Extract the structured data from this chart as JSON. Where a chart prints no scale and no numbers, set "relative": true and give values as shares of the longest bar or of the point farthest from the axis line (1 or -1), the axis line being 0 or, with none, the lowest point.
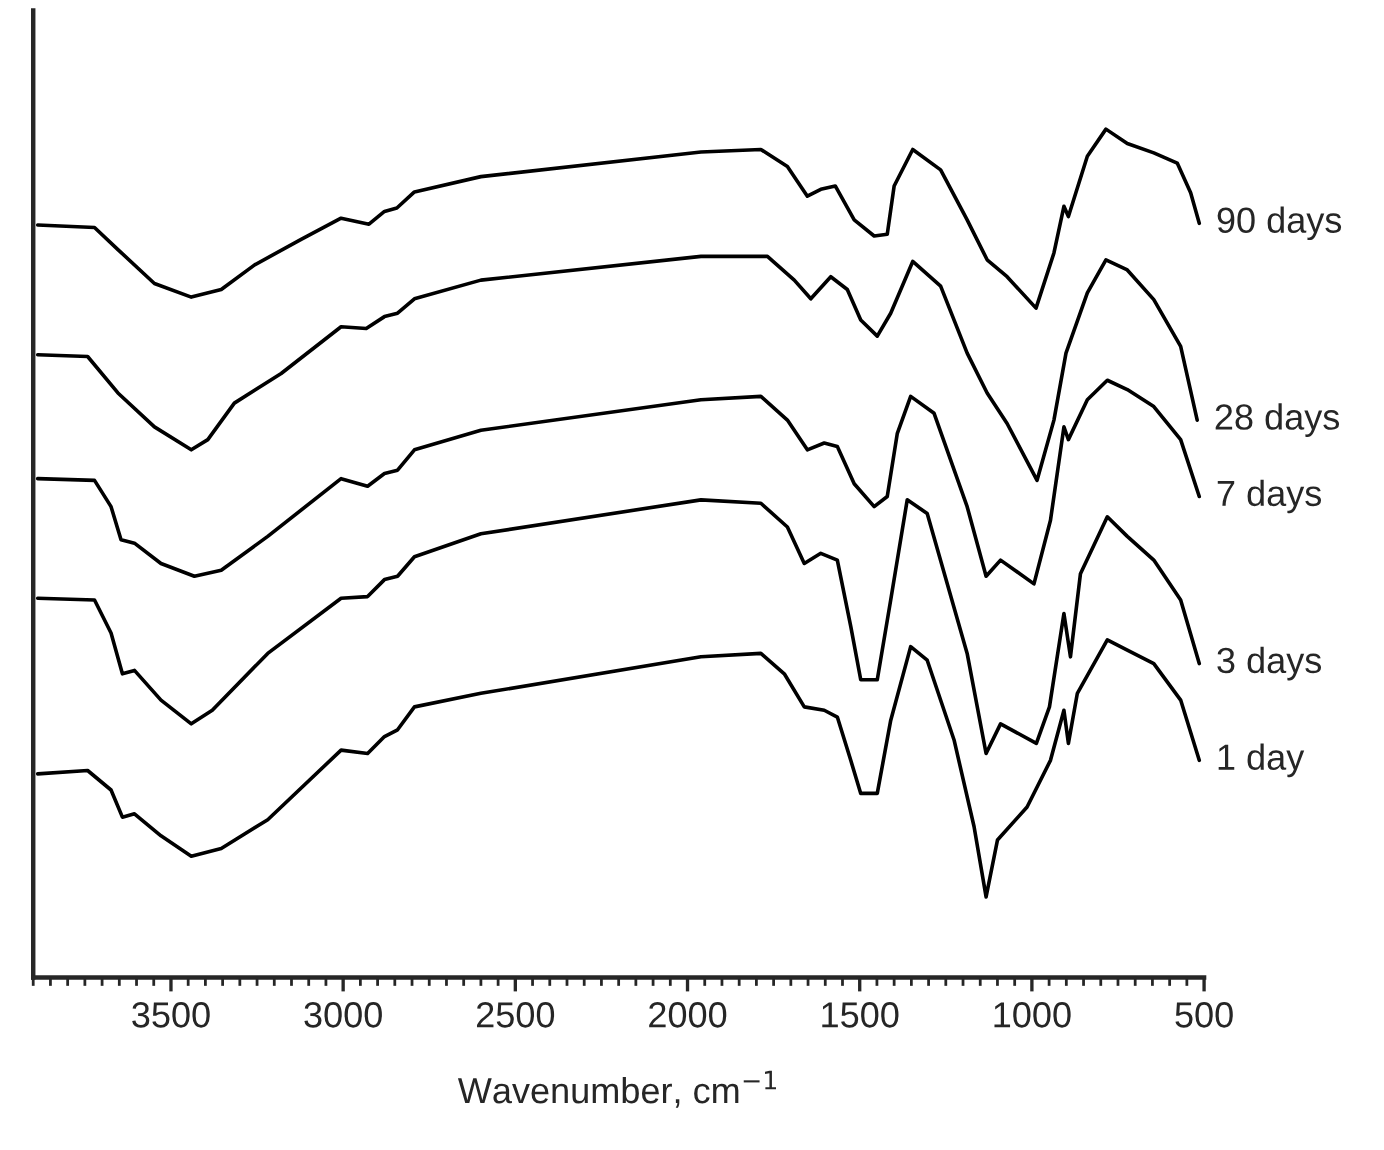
{
  "chart_data": {
    "type": "line",
    "relative": true,
    "xlabel": "Wavenumber, cm$^{−1}$",
    "xlim": [
      3900,
      500
    ],
    "xticks": [
      3500,
      3000,
      2500,
      2000,
      1500,
      1000,
      500
    ],
    "grid": false,
    "legend": false,
    "marker": "none",
    "line_style": "solid",
    "series": [
      {
        "name": "90 days",
        "color": "#000000",
        "x": [
          3887,
          3722,
          3654,
          3548,
          3441,
          3354,
          3257,
          3122,
          3006,
          2925,
          2880,
          2844,
          2793,
          2600,
          1961,
          1787,
          1710,
          1652,
          1613,
          1571,
          1516,
          1458,
          1420,
          1400,
          1346,
          1265,
          1188,
          1130,
          1072,
          988,
          936,
          907,
          894,
          839,
          785,
          723,
          646,
          578,
          539,
          514
        ],
        "values": [
          0.887,
          0.884,
          0.858,
          0.818,
          0.802,
          0.811,
          0.84,
          0.87,
          0.895,
          0.888,
          0.903,
          0.907,
          0.926,
          0.944,
          0.973,
          0.976,
          0.956,
          0.921,
          0.929,
          0.933,
          0.893,
          0.874,
          0.876,
          0.933,
          0.976,
          0.952,
          0.893,
          0.846,
          0.826,
          0.789,
          0.854,
          0.909,
          0.897,
          0.968,
          1.0,
          0.983,
          0.972,
          0.96,
          0.925,
          0.889
        ]
      },
      {
        "name": "28 days",
        "color": "#000000",
        "x": [
          3887,
          3742,
          3654,
          3548,
          3441,
          3393,
          3316,
          3180,
          3006,
          2933,
          2880,
          2842,
          2793,
          2600,
          1961,
          1768,
          1690,
          1642,
          1584,
          1536,
          1497,
          1449,
          1410,
          1346,
          1265,
          1188,
          1130,
          1072,
          985,
          936,
          901,
          839,
          785,
          723,
          646,
          568,
          520
        ],
        "values": [
          0.734,
          0.732,
          0.689,
          0.649,
          0.622,
          0.634,
          0.677,
          0.712,
          0.767,
          0.765,
          0.779,
          0.783,
          0.8,
          0.822,
          0.85,
          0.85,
          0.822,
          0.8,
          0.826,
          0.811,
          0.775,
          0.756,
          0.783,
          0.844,
          0.815,
          0.736,
          0.689,
          0.653,
          0.586,
          0.657,
          0.736,
          0.807,
          0.846,
          0.834,
          0.799,
          0.744,
          0.657
        ]
      },
      {
        "name": "7 days",
        "color": "#000000",
        "x": [
          3887,
          3722,
          3674,
          3645,
          3606,
          3529,
          3432,
          3354,
          3219,
          3006,
          2929,
          2880,
          2842,
          2793,
          2600,
          1961,
          1787,
          1710,
          1652,
          1603,
          1565,
          1516,
          1458,
          1420,
          1391,
          1352,
          1284,
          1188,
          1133,
          1091,
          994,
          946,
          907,
          894,
          839,
          781,
          723,
          646,
          568,
          514
        ],
        "values": [
          0.588,
          0.586,
          0.555,
          0.516,
          0.512,
          0.488,
          0.473,
          0.48,
          0.52,
          0.588,
          0.579,
          0.594,
          0.598,
          0.622,
          0.645,
          0.681,
          0.685,
          0.657,
          0.622,
          0.63,
          0.626,
          0.582,
          0.555,
          0.567,
          0.641,
          0.685,
          0.665,
          0.555,
          0.473,
          0.492,
          0.464,
          0.539,
          0.649,
          0.634,
          0.681,
          0.704,
          0.693,
          0.673,
          0.634,
          0.567
        ]
      },
      {
        "name": "3 days",
        "color": "#000000",
        "x": [
          3887,
          3722,
          3674,
          3641,
          3606,
          3529,
          3441,
          3380,
          3219,
          3006,
          2929,
          2880,
          2842,
          2793,
          2600,
          1961,
          1787,
          1710,
          1661,
          1613,
          1565,
          1526,
          1497,
          1449,
          1410,
          1362,
          1304,
          1188,
          1133,
          1091,
          987,
          949,
          907,
          888,
          859,
          781,
          723,
          646,
          568,
          514
        ],
        "values": [
          0.447,
          0.445,
          0.406,
          0.358,
          0.362,
          0.327,
          0.299,
          0.315,
          0.382,
          0.447,
          0.449,
          0.469,
          0.473,
          0.496,
          0.523,
          0.563,
          0.559,
          0.531,
          0.488,
          0.5,
          0.492,
          0.414,
          0.351,
          0.351,
          0.445,
          0.563,
          0.547,
          0.382,
          0.264,
          0.299,
          0.276,
          0.319,
          0.429,
          0.378,
          0.476,
          0.543,
          0.52,
          0.492,
          0.445,
          0.37
        ]
      },
      {
        "name": "1 day",
        "color": "#000000",
        "x": [
          3887,
          3742,
          3674,
          3641,
          3606,
          3529,
          3441,
          3354,
          3219,
          3006,
          2929,
          2880,
          2842,
          2793,
          2600,
          1961,
          1787,
          1719,
          1661,
          1603,
          1565,
          1526,
          1497,
          1449,
          1410,
          1352,
          1304,
          1226,
          1168,
          1133,
          1100,
          1014,
          946,
          907,
          894,
          868,
          781,
          723,
          646,
          568,
          514
        ],
        "values": [
          0.24,
          0.244,
          0.221,
          0.189,
          0.193,
          0.167,
          0.143,
          0.152,
          0.186,
          0.268,
          0.264,
          0.284,
          0.292,
          0.319,
          0.335,
          0.378,
          0.382,
          0.358,
          0.319,
          0.315,
          0.307,
          0.256,
          0.217,
          0.217,
          0.303,
          0.39,
          0.374,
          0.28,
          0.178,
          0.095,
          0.162,
          0.201,
          0.256,
          0.315,
          0.276,
          0.335,
          0.398,
          0.386,
          0.37,
          0.327,
          0.256
        ]
      }
    ]
  }
}
